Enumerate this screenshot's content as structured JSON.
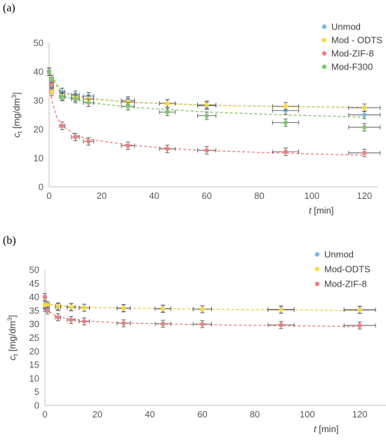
{
  "chart_data": [
    {
      "panel_label": "(a)",
      "type": "scatter",
      "xlabel_var": "t",
      "xlabel_unit": "[min]",
      "ylabel_var": "c",
      "ylabel_sub": "t",
      "ylabel_unit": "[mg/dm",
      "ylabel_sup": "3",
      "ylabel_close": "]",
      "xlim": [
        0,
        125
      ],
      "ylim": [
        0,
        50
      ],
      "x_ticks": [
        "0",
        "20",
        "40",
        "60",
        "80",
        "100",
        "120"
      ],
      "y_ticks": [
        "0",
        "10",
        "20",
        "30",
        "40",
        "50"
      ],
      "grid": false,
      "legend_position": "top-right",
      "series": [
        {
          "name": "Unmod",
          "color": "#7DB5E2",
          "x": [
            0,
            1,
            5,
            10,
            15,
            30,
            45,
            60,
            90,
            120
          ],
          "y": [
            40,
            35,
            33,
            32,
            31.5,
            30,
            29,
            28.2,
            26.5,
            25
          ],
          "fit": [
            [
              0,
              40
            ],
            [
              5,
              32.8
            ],
            [
              15,
              30.8
            ],
            [
              30,
              29.5
            ],
            [
              60,
              28.4
            ],
            [
              90,
              27.9
            ],
            [
              120,
              27.6
            ]
          ]
        },
        {
          "name": "Mod - ODTS",
          "color": "#FFD93D",
          "x": [
            0,
            1,
            5,
            10,
            15,
            30,
            45,
            60,
            90,
            120
          ],
          "y": [
            40,
            33,
            31.5,
            31,
            30.5,
            29.5,
            29,
            28.5,
            28,
            27.5
          ],
          "fit": [
            [
              0,
              40
            ],
            [
              5,
              32.5
            ],
            [
              15,
              30.6
            ],
            [
              30,
              29.3
            ],
            [
              60,
              28.3
            ],
            [
              90,
              27.8
            ],
            [
              120,
              27.5
            ]
          ]
        },
        {
          "name": "Mod-ZIF-8",
          "color": "#F08080",
          "x": [
            0,
            1,
            5,
            10,
            15,
            30,
            45,
            60,
            90,
            120
          ],
          "y": [
            40,
            35.5,
            21.2,
            17.3,
            15.8,
            14.3,
            13.2,
            12.7,
            12.2,
            11.8
          ],
          "fit": [
            [
              0,
              40
            ],
            [
              1,
              30
            ],
            [
              3,
              24
            ],
            [
              5,
              21.2
            ],
            [
              10,
              18
            ],
            [
              15,
              16.5
            ],
            [
              30,
              14.6
            ],
            [
              45,
              13.4
            ],
            [
              60,
              12.6
            ],
            [
              90,
              11.7
            ],
            [
              120,
              11
            ]
          ]
        },
        {
          "name": "Mod-F300",
          "color": "#7EC86B",
          "x": [
            0,
            1,
            5,
            10,
            15,
            30,
            45,
            60,
            90,
            120
          ],
          "y": [
            40,
            37.5,
            31.2,
            30.5,
            29.2,
            28,
            26,
            24.7,
            22.3,
            20.7
          ],
          "fit": [
            [
              0,
              40
            ],
            [
              5,
              31.5
            ],
            [
              15,
              29.3
            ],
            [
              30,
              27.7
            ],
            [
              60,
              26
            ],
            [
              90,
              25
            ],
            [
              120,
              24.2
            ]
          ]
        }
      ]
    },
    {
      "panel_label": "(b)",
      "type": "scatter",
      "xlabel_var": "t",
      "xlabel_unit": "[min]",
      "ylabel_var": "c",
      "ylabel_sub": "t",
      "ylabel_unit": "[mg/dm",
      "ylabel_sup": "3",
      "ylabel_close": "]",
      "xlim": [
        0,
        130
      ],
      "ylim": [
        0,
        50
      ],
      "x_ticks": [
        "0",
        "20",
        "40",
        "60",
        "80",
        "100",
        "120"
      ],
      "y_ticks": [
        "0",
        "5",
        "10",
        "15",
        "20",
        "25",
        "30",
        "35",
        "40",
        "45",
        "50"
      ],
      "grid": false,
      "legend_position": "top-right",
      "series": [
        {
          "name": "Unmod",
          "color": "#7DB5E2",
          "x": [
            0,
            1,
            5,
            10,
            15,
            30,
            45,
            60,
            90,
            120
          ],
          "y": [
            36,
            36.5,
            36.3,
            36.2,
            36,
            35.8,
            35.6,
            35.5,
            35.4,
            35.3
          ],
          "fit": [
            [
              0,
              37.3
            ],
            [
              10,
              36.3
            ],
            [
              30,
              35.9
            ],
            [
              60,
              35.5
            ],
            [
              90,
              35.2
            ],
            [
              120,
              35
            ]
          ]
        },
        {
          "name": "Mod-ODTS",
          "color": "#FFD93D",
          "x": [
            0,
            1,
            5,
            10,
            15,
            30,
            45,
            60,
            90,
            120
          ],
          "y": [
            37,
            37,
            36.5,
            36.3,
            36,
            35.9,
            35.7,
            35.5,
            35.3,
            35.2
          ],
          "fit": [
            [
              0,
              37.5
            ],
            [
              10,
              36.4
            ],
            [
              30,
              35.9
            ],
            [
              60,
              35.5
            ],
            [
              90,
              35.2
            ],
            [
              120,
              35
            ]
          ]
        },
        {
          "name": "Mod-ZIF-8",
          "color": "#F08080",
          "x": [
            0,
            1,
            5,
            10,
            15,
            30,
            45,
            60,
            90,
            120
          ],
          "y": [
            40,
            35,
            32.5,
            31.5,
            31,
            30.3,
            30.1,
            30,
            29.7,
            29.5
          ],
          "fit": [
            [
              0,
              35.5
            ],
            [
              5,
              32.6
            ],
            [
              15,
              31.2
            ],
            [
              30,
              30.4
            ],
            [
              60,
              29.8
            ],
            [
              90,
              29.4
            ],
            [
              120,
              29.1
            ]
          ]
        }
      ]
    }
  ]
}
